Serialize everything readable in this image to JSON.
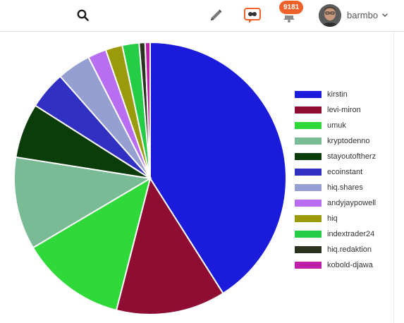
{
  "header": {
    "notification_count": "9181",
    "username": "barmbo",
    "icons": [
      "search-icon",
      "pencil-icon",
      "chat-icon",
      "bell-icon",
      "chevron-down-icon"
    ]
  },
  "chart_data": {
    "type": "pie",
    "title": "",
    "legend_position": "right",
    "labels": [
      "kirstin",
      "levi-miron",
      "umuk",
      "kryptodenno",
      "stayoutoftherz",
      "ecoinstant",
      "hiq.shares",
      "andyjaypowell",
      "hiq",
      "indextrader24",
      "hiq.redaktion",
      "kobold-djawa"
    ],
    "values": [
      41.0,
      13.0,
      12.5,
      11.0,
      6.5,
      4.5,
      4.0,
      2.2,
      2.0,
      2.0,
      0.7,
      0.6
    ],
    "colors": [
      "#1b1bdc",
      "#8f0c33",
      "#2fd93a",
      "#79bb94",
      "#0b3d0b",
      "#3030c2",
      "#959fd1",
      "#b96df0",
      "#9a9a0b",
      "#25cd46",
      "#2b3320",
      "#c01fa9"
    ]
  }
}
